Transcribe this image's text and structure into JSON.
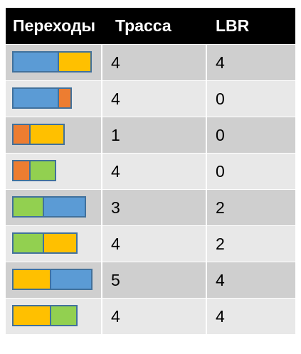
{
  "colors": {
    "blue": "#5b9bd5",
    "yellow": "#ffc000",
    "orange": "#ed7d31",
    "green": "#92d050",
    "outline": "#41719c",
    "header_bg": "#000000"
  },
  "header": {
    "col1": "Переходы",
    "col2": "Трасса",
    "col3": "LBR"
  },
  "rows": [
    {
      "segments": [
        "blue",
        "yellow"
      ],
      "trassa": "4",
      "lbr": "4"
    },
    {
      "segments": [
        "blue",
        "orange"
      ],
      "trassa": "4",
      "lbr": "0"
    },
    {
      "segments": [
        "orange",
        "yellow"
      ],
      "trassa": "1",
      "lbr": "0"
    },
    {
      "segments": [
        "orange",
        "green"
      ],
      "trassa": "4",
      "lbr": "0"
    },
    {
      "segments": [
        "green",
        "blue"
      ],
      "trassa": "3",
      "lbr": "2"
    },
    {
      "segments": [
        "green",
        "yellow"
      ],
      "trassa": "4",
      "lbr": "2"
    },
    {
      "segments": [
        "yellow",
        "blue"
      ],
      "trassa": "5",
      "lbr": "4"
    },
    {
      "segments": [
        "yellow",
        "green"
      ],
      "trassa": "4",
      "lbr": "4"
    }
  ]
}
